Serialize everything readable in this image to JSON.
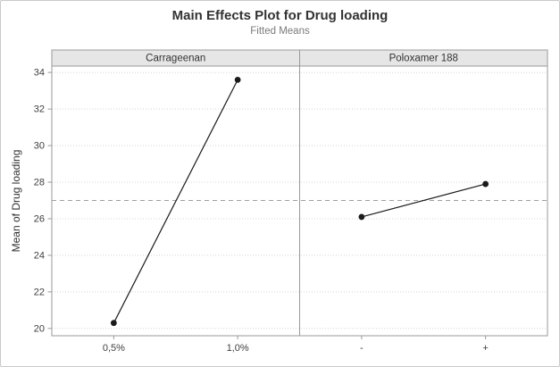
{
  "chart_data": {
    "type": "line",
    "title": "Main Effects Plot for Drug loading",
    "subtitle": "Fitted Means",
    "ylabel": "Mean of Drug loading",
    "ylim": [
      20,
      34
    ],
    "yticks": [
      20,
      22,
      24,
      26,
      28,
      30,
      32,
      34
    ],
    "reference_line": 27,
    "grid": "dotted horizontal lines at y ticks",
    "legend": "none",
    "panels": [
      {
        "name": "Carrageenan",
        "categories": [
          "0,5%",
          "1,0%"
        ],
        "values": [
          20.3,
          33.6
        ]
      },
      {
        "name": "Poloxamer 188",
        "categories": [
          "-",
          "+"
        ],
        "values": [
          26.1,
          27.9
        ]
      }
    ],
    "colors": {
      "point": "#1a1a1a",
      "line": "#1a1a1a",
      "reference": "#a0a0a0",
      "panel_header_bg": "#e6e6e6",
      "border": "#9a9a9a",
      "grid": "#d4d4d4",
      "tick_text": "#3f3f3f"
    }
  }
}
